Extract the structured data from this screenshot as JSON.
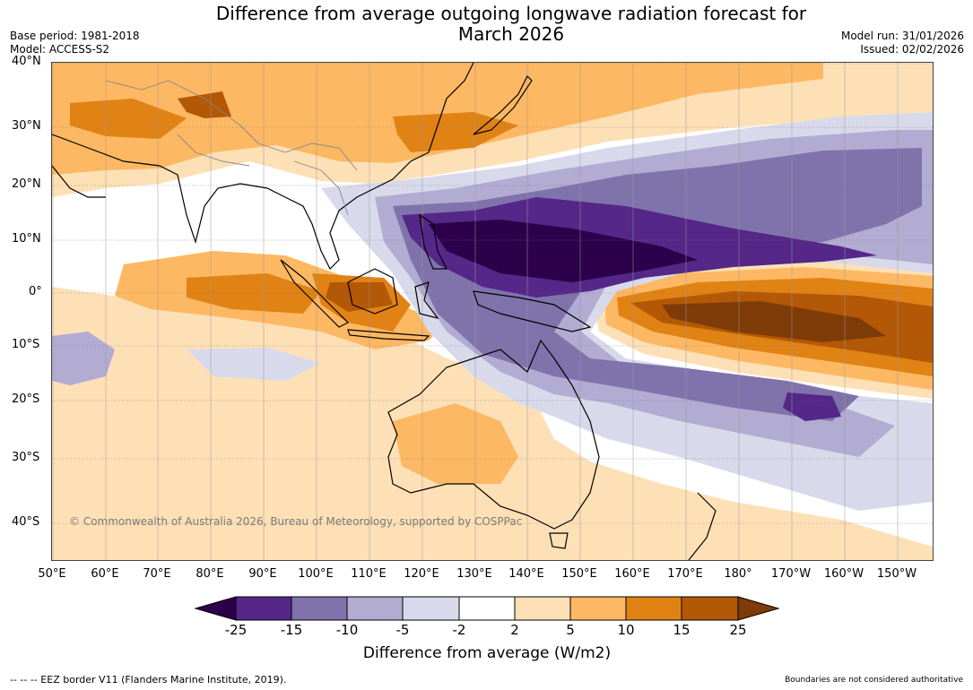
{
  "header": {
    "title_line1": "Difference from average outgoing longwave radiation forecast for",
    "title_line2": "March 2026",
    "base_period": "Base period: 1981-2018",
    "model": "Model: ACCESS-S2",
    "model_run": "Model run: 31/01/2026",
    "issued": "Issued: 02/02/2026"
  },
  "map": {
    "lat_labels": [
      "40°N",
      "30°N",
      "20°N",
      "10°N",
      "0°",
      "10°S",
      "20°S",
      "30°S",
      "40°S"
    ],
    "lon_labels": [
      "50°E",
      "60°E",
      "70°E",
      "80°E",
      "90°E",
      "100°E",
      "110°E",
      "120°E",
      "130°E",
      "140°E",
      "150°E",
      "160°E",
      "170°E",
      "180°",
      "170°W",
      "160°W",
      "150°W"
    ],
    "copyright": "© Commonwealth of Australia 2026, Bureau of Meteorology, supported by COSPPac"
  },
  "colorbar": {
    "ticks": [
      "-25",
      "-15",
      "-10",
      "-5",
      "-2",
      "2",
      "5",
      "10",
      "15",
      "25"
    ],
    "colors": [
      "#2d004b",
      "#542788",
      "#8073ac",
      "#b2abd2",
      "#d8daeb",
      "#ffffff",
      "#fee0b6",
      "#fdb863",
      "#e08214",
      "#b35806",
      "#7f3b08"
    ],
    "label": "Difference from average (W/m2)"
  },
  "footer": {
    "eez_legend": "--  --  -- EEZ border V11 (Flanders Marine Institute, 2019).",
    "disclaimer": "Boundaries are not considered authoritative"
  }
}
